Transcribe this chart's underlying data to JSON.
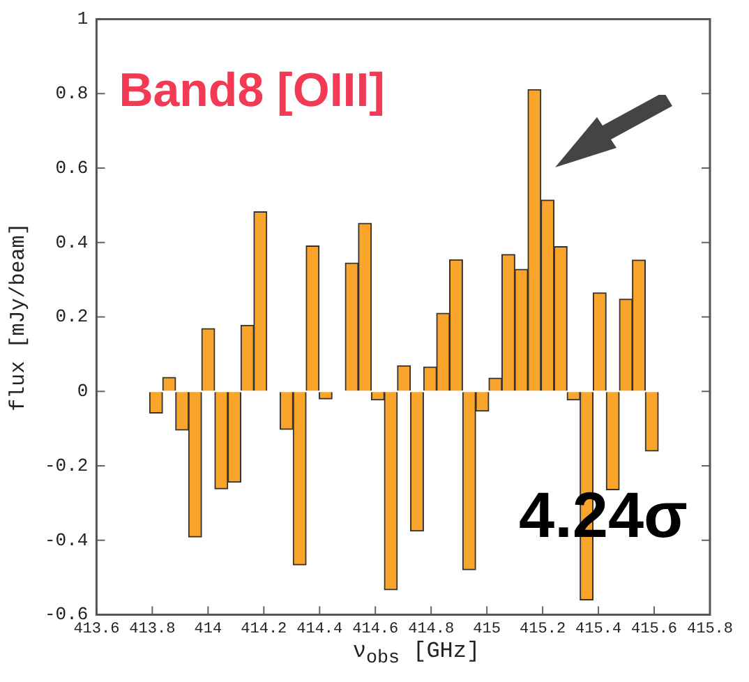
{
  "chart_data": {
    "type": "histogram",
    "xlabel": "ν$_{obs}$ [GHz]",
    "ylabel": "flux [mJy/beam]",
    "annotations": [
      "Band8 [OIII]",
      "4.24σ"
    ],
    "bins": [
      413.79,
      413.837,
      413.884,
      413.93,
      413.977,
      414.024,
      414.071,
      414.118,
      414.164,
      414.211,
      414.258,
      414.305,
      414.352,
      414.398,
      414.445,
      414.492,
      414.539,
      414.586,
      414.632,
      414.679,
      414.726,
      414.773,
      414.82,
      414.866,
      414.913,
      414.96,
      415.007,
      415.054,
      415.1,
      415.147,
      415.194,
      415.241,
      415.288,
      415.334,
      415.381,
      415.428,
      415.475,
      415.522,
      415.568,
      415.615
    ],
    "values": [
      -0.058,
      0.038,
      -0.104,
      -0.391,
      0.169,
      -0.262,
      -0.244,
      0.178,
      0.483,
      0,
      -0.102,
      -0.466,
      0.391,
      -0.02,
      null,
      0.345,
      0.452,
      -0.023,
      -0.533,
      0.069,
      -0.375,
      0.066,
      0.21,
      0.354,
      -0.479,
      -0.053,
      0.036,
      0.368,
      0.328,
      0.811,
      0.514,
      0.389,
      -0.023,
      -0.56,
      0.265,
      -0.264,
      0.248,
      0.353,
      -0.16
    ],
    "color": "#f9a52c",
    "xlim": [
      413.6,
      415.8
    ],
    "xticks": [
      413.6,
      413.8,
      414,
      414.2,
      414.4,
      414.6,
      414.8,
      415,
      415.2,
      415.4,
      415.6,
      415.8
    ],
    "ylim": [
      -0.6,
      1
    ],
    "yticks": [
      -0.6,
      -0.4,
      -0.2,
      0,
      0.2,
      0.4,
      0.6,
      0.8,
      1
    ],
    "grid": false,
    "legend": false
  }
}
